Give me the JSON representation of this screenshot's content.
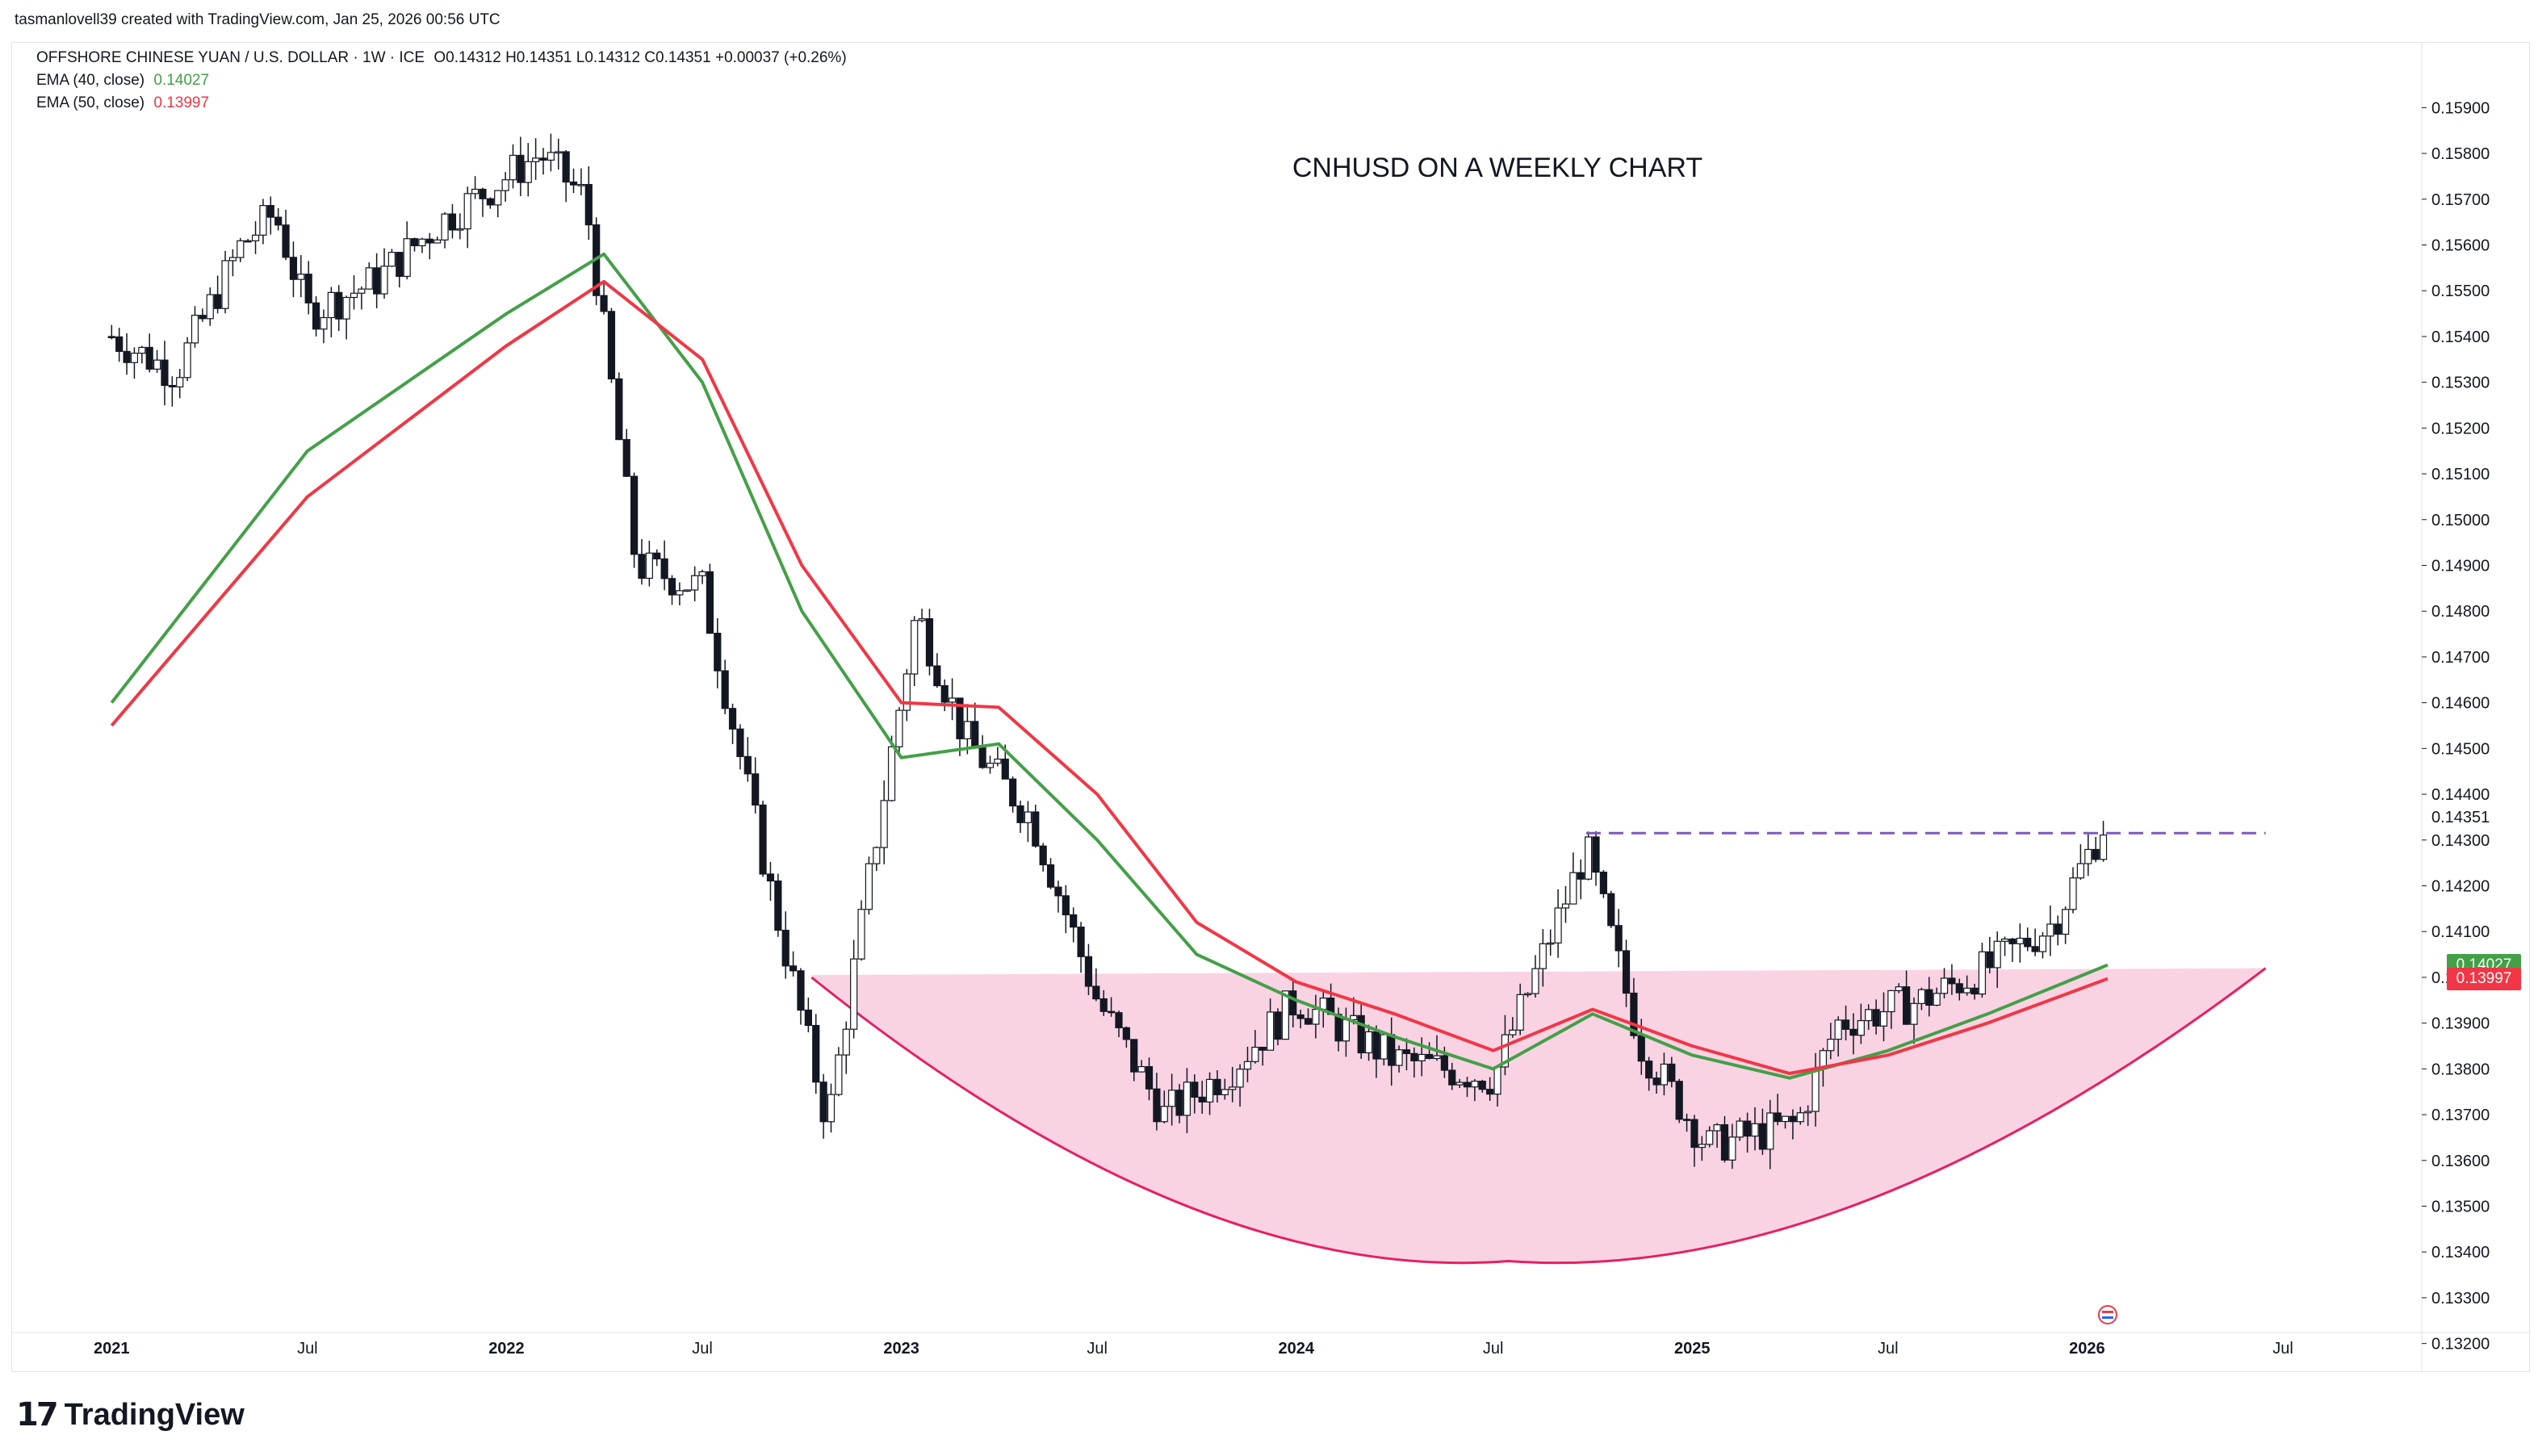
{
  "header": {
    "credit": "tasmanlovell39 created with TradingView.com, Jan 25, 2026 00:56 UTC"
  },
  "legend": {
    "symbol_line": "OFFSHORE CHINESE YUAN / U.S. DOLLAR · 1W · ICE",
    "ohlc": "O0.14312 H0.14351 L0.14312 C0.14351 +0.00037 (+0.26%)",
    "ema40_label": "EMA (40, close)",
    "ema40_value": "0.14027",
    "ema50_label": "EMA (50, close)",
    "ema50_value": "0.13997"
  },
  "annotation": "CNHUSD ON A WEEKLY CHART",
  "footer": {
    "brand": "TradingView",
    "brand_icon": "tradingview-logo-icon"
  },
  "colors": {
    "ema40": "#43a047",
    "ema50": "#f23645",
    "bowl_fill": "#f8c8dc",
    "bowl_line": "#e91e63",
    "resistance": "#7e57c2",
    "candle": "#131722"
  },
  "chart_data": {
    "type": "candlestick",
    "title": "CNHUSD ON A WEEKLY CHART",
    "y_axis": {
      "side": "right",
      "ticks": [
        "0.15900",
        "0.15800",
        "0.15700",
        "0.15600",
        "0.15500",
        "0.15400",
        "0.15300",
        "0.15200",
        "0.15100",
        "0.15000",
        "0.14900",
        "0.14800",
        "0.14700",
        "0.14600",
        "0.14500",
        "0.14400",
        "0.14300",
        "0.14200",
        "0.14100",
        "0.14000",
        "0.13900",
        "0.13800",
        "0.13700",
        "0.13600",
        "0.13500",
        "0.13400",
        "0.13300",
        "0.13200"
      ],
      "ylim": [
        0.1315,
        0.1595
      ],
      "current_price": "0.14351"
    },
    "x_axis": {
      "ticks": [
        "2021",
        "Jul",
        "2022",
        "Jul",
        "2023",
        "Jul",
        "2024",
        "Jul",
        "2025",
        "Jul",
        "2026",
        "Jul"
      ]
    },
    "price_path": [
      {
        "date": "2021-01-01",
        "close": 0.154
      },
      {
        "date": "2021-03-01",
        "close": 0.1532
      },
      {
        "date": "2021-05-01",
        "close": 0.156
      },
      {
        "date": "2021-06-01",
        "close": 0.1567
      },
      {
        "date": "2021-07-01",
        "close": 0.1545
      },
      {
        "date": "2021-09-01",
        "close": 0.1552
      },
      {
        "date": "2021-11-01",
        "close": 0.1565
      },
      {
        "date": "2022-02-01",
        "close": 0.158
      },
      {
        "date": "2022-03-15",
        "close": 0.157
      },
      {
        "date": "2022-05-01",
        "close": 0.149
      },
      {
        "date": "2022-07-01",
        "close": 0.1485
      },
      {
        "date": "2022-09-01",
        "close": 0.142
      },
      {
        "date": "2022-10-25",
        "close": 0.1368
      },
      {
        "date": "2022-12-01",
        "close": 0.142
      },
      {
        "date": "2023-01-15",
        "close": 0.148
      },
      {
        "date": "2023-03-01",
        "close": 0.1452
      },
      {
        "date": "2023-05-01",
        "close": 0.1435
      },
      {
        "date": "2023-07-01",
        "close": 0.1395
      },
      {
        "date": "2023-09-01",
        "close": 0.137
      },
      {
        "date": "2023-11-01",
        "close": 0.138
      },
      {
        "date": "2024-01-01",
        "close": 0.1395
      },
      {
        "date": "2024-04-01",
        "close": 0.1382
      },
      {
        "date": "2024-07-01",
        "close": 0.1378
      },
      {
        "date": "2024-09-25",
        "close": 0.1428
      },
      {
        "date": "2024-11-15",
        "close": 0.1385
      },
      {
        "date": "2025-01-15",
        "close": 0.1363
      },
      {
        "date": "2025-04-08",
        "close": 0.1368
      },
      {
        "date": "2025-05-15",
        "close": 0.139
      },
      {
        "date": "2025-08-01",
        "close": 0.1395
      },
      {
        "date": "2025-10-01",
        "close": 0.1402
      },
      {
        "date": "2025-12-01",
        "close": 0.1412
      },
      {
        "date": "2026-01-20",
        "close": 0.14351
      }
    ],
    "series": [
      {
        "name": "EMA (40, close)",
        "last": 0.14027,
        "points": [
          [
            "2021-01-01",
            0.146
          ],
          [
            "2021-07-01",
            0.1515
          ],
          [
            "2022-01-01",
            0.1545
          ],
          [
            "2022-04-01",
            0.1558
          ],
          [
            "2022-07-01",
            0.153
          ],
          [
            "2022-10-01",
            0.148
          ],
          [
            "2023-01-01",
            0.1448
          ],
          [
            "2023-04-01",
            0.1451
          ],
          [
            "2023-07-01",
            0.143
          ],
          [
            "2023-10-01",
            0.1405
          ],
          [
            "2024-01-01",
            0.1395
          ],
          [
            "2024-04-01",
            0.1387
          ],
          [
            "2024-07-01",
            0.138
          ],
          [
            "2024-10-01",
            0.1392
          ],
          [
            "2025-01-01",
            0.1383
          ],
          [
            "2025-04-01",
            0.1378
          ],
          [
            "2025-07-01",
            0.1384
          ],
          [
            "2025-10-01",
            0.1392
          ],
          [
            "2026-01-20",
            0.14027
          ]
        ]
      },
      {
        "name": "EMA (50, close)",
        "last": 0.13997,
        "points": [
          [
            "2021-01-01",
            0.1455
          ],
          [
            "2021-07-01",
            0.1505
          ],
          [
            "2022-01-01",
            0.1538
          ],
          [
            "2022-04-01",
            0.1552
          ],
          [
            "2022-07-01",
            0.1535
          ],
          [
            "2022-10-01",
            0.149
          ],
          [
            "2023-01-01",
            0.146
          ],
          [
            "2023-04-01",
            0.1459
          ],
          [
            "2023-07-01",
            0.144
          ],
          [
            "2023-10-01",
            0.1412
          ],
          [
            "2024-01-01",
            0.1399
          ],
          [
            "2024-04-01",
            0.1392
          ],
          [
            "2024-07-01",
            0.1384
          ],
          [
            "2024-10-01",
            0.1393
          ],
          [
            "2025-01-01",
            0.1385
          ],
          [
            "2025-04-01",
            0.1379
          ],
          [
            "2025-07-01",
            0.1383
          ],
          [
            "2025-10-01",
            0.139
          ],
          [
            "2026-01-20",
            0.13997
          ]
        ]
      }
    ],
    "resistance_line": {
      "value": 0.14315,
      "from": "2024-09-25",
      "to": "2026-06-15",
      "style": "dashed"
    },
    "rounding_bottom": {
      "left": [
        "2022-10-10",
        0.14
      ],
      "bottom": [
        "2024-07-15",
        0.1338
      ],
      "right": [
        "2026-06-15",
        0.1402
      ]
    },
    "grid": false
  }
}
